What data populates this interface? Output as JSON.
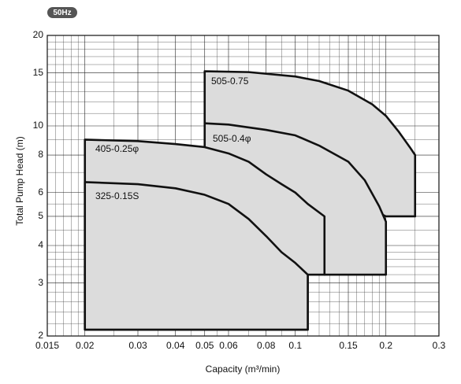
{
  "chart_data": {
    "type": "region",
    "badge": "50Hz",
    "x_label": "Capacity (m³/min)",
    "y_label": "Total Pump Head (m)",
    "log_x": true,
    "log_y": true,
    "grid": true,
    "fill": "#dcdcdc",
    "line_color": "#111111",
    "xlim": [
      0.015,
      0.3
    ],
    "ylim": [
      2,
      20
    ],
    "xticks": [
      0.015,
      0.02,
      0.03,
      0.04,
      0.05,
      0.06,
      0.08,
      0.1,
      0.15,
      0.2,
      0.3
    ],
    "yticks": [
      2,
      3,
      4,
      5,
      6,
      8,
      10,
      15,
      20
    ],
    "xminor": [
      0.016,
      0.017,
      0.018,
      0.019,
      0.025,
      0.035,
      0.045,
      0.055,
      0.07,
      0.09,
      0.11,
      0.12,
      0.13,
      0.14,
      0.16,
      0.17,
      0.18,
      0.19,
      0.25
    ],
    "yminor": [
      2.2,
      2.4,
      2.6,
      2.8,
      3.2,
      3.4,
      3.6,
      3.8,
      4.5,
      5.5,
      7,
      9,
      11,
      12,
      13,
      14,
      16,
      17,
      18,
      19
    ],
    "regions": [
      {
        "name": "505-0.75",
        "x": [
          0.05,
          0.07,
          0.1,
          0.12,
          0.15,
          0.18,
          0.2,
          0.22,
          0.24,
          0.25,
          0.25,
          0.2,
          0.05
        ],
        "y": [
          15.2,
          15.1,
          14.6,
          14.1,
          13.1,
          11.8,
          10.8,
          9.6,
          8.5,
          8.0,
          5.0,
          5.0,
          10.2
        ]
      },
      {
        "name": "505-0.4φ",
        "x": [
          0.05,
          0.06,
          0.08,
          0.1,
          0.12,
          0.15,
          0.17,
          0.19,
          0.2,
          0.2,
          0.125,
          0.05
        ],
        "y": [
          10.2,
          10.1,
          9.7,
          9.3,
          8.6,
          7.6,
          6.6,
          5.4,
          4.8,
          3.2,
          3.2,
          8.5
        ]
      },
      {
        "name": "405-0.25φ",
        "x": [
          0.02,
          0.03,
          0.04,
          0.05,
          0.06,
          0.07,
          0.08,
          0.09,
          0.1,
          0.11,
          0.125,
          0.125,
          0.11,
          0.11,
          0.02
        ],
        "y": [
          9.0,
          8.9,
          8.7,
          8.5,
          8.1,
          7.6,
          6.9,
          6.4,
          6.0,
          5.5,
          5.0,
          3.2,
          3.2,
          2.1,
          2.1
        ]
      },
      {
        "name": "325-0.15S",
        "x": [
          0.02,
          0.03,
          0.04,
          0.05,
          0.06,
          0.07,
          0.08,
          0.09,
          0.1,
          0.11,
          0.11,
          0.02
        ],
        "y": [
          6.5,
          6.4,
          6.2,
          5.9,
          5.5,
          4.9,
          4.3,
          3.8,
          3.5,
          3.2,
          2.1,
          2.1
        ]
      }
    ]
  }
}
